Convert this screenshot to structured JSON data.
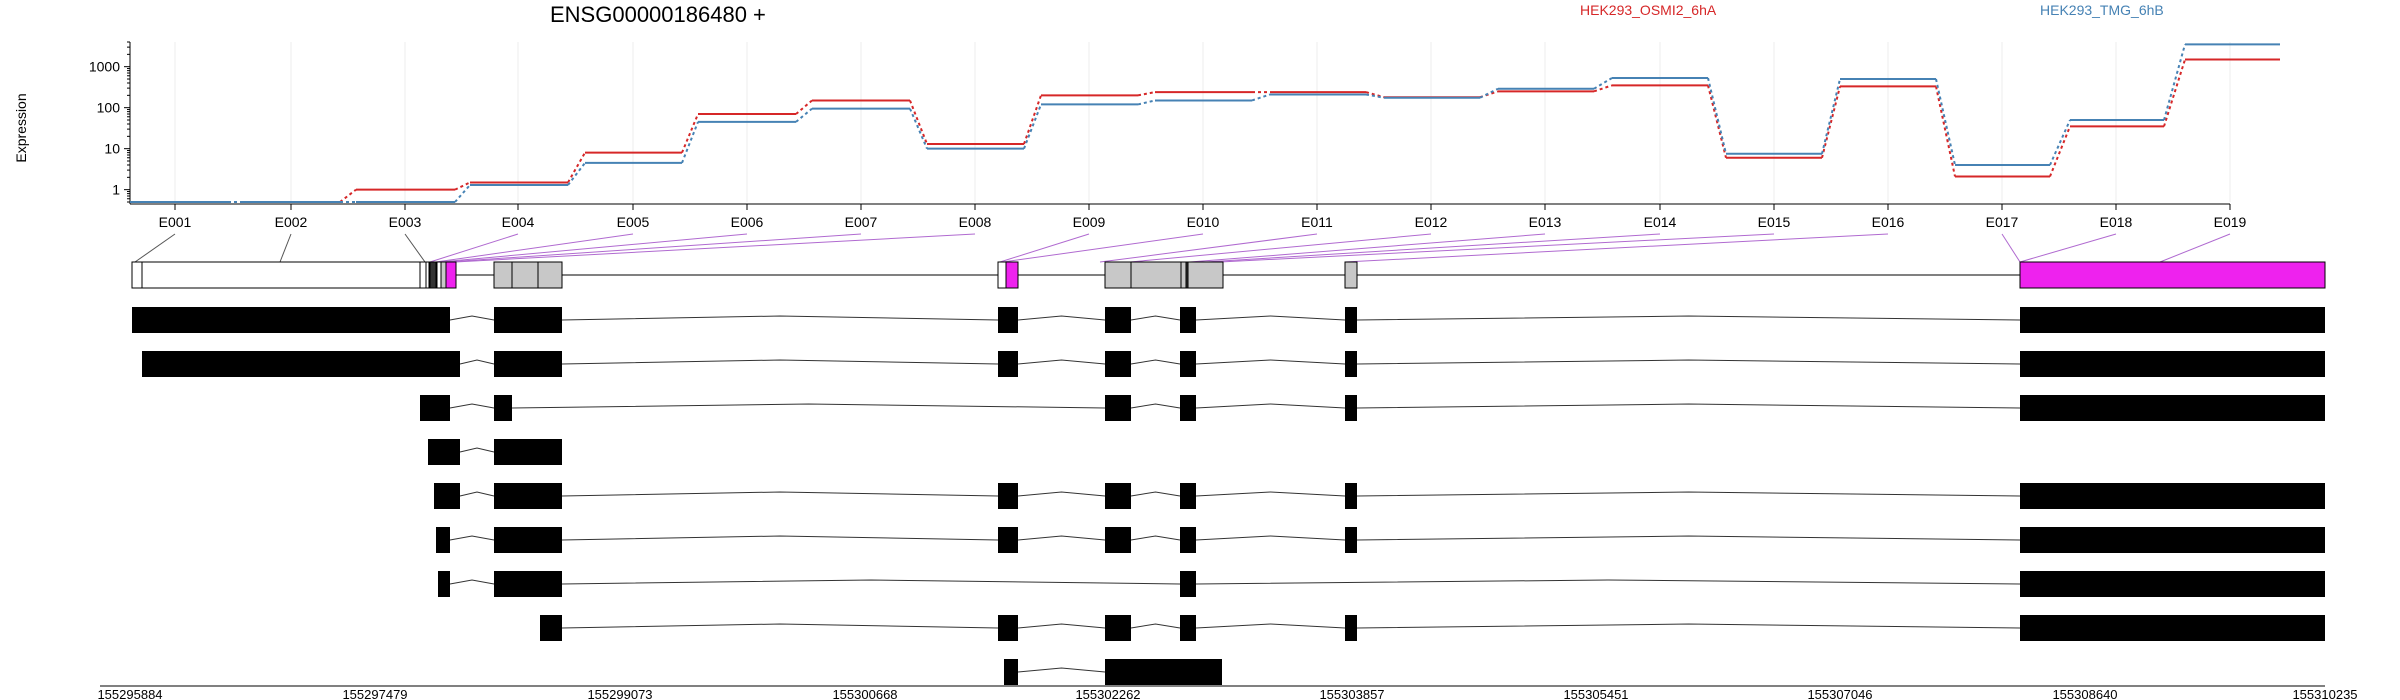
{
  "chart_data": {
    "type": "line",
    "title": "ENSG00000186480 +",
    "ylabel": "Expression",
    "yscale": "log",
    "ylim": [
      0.5,
      4000
    ],
    "y_ticks": [
      1,
      10,
      100,
      1000
    ],
    "y_tick_labels": [
      "1",
      "10",
      "100",
      "1000"
    ],
    "grid": true,
    "legend_position": "top",
    "categories": [
      "E001",
      "E002",
      "E003",
      "E004",
      "E005",
      "E006",
      "E007",
      "E008",
      "E009",
      "E010",
      "E011",
      "E012",
      "E013",
      "E014",
      "E015",
      "E016",
      "E017",
      "E018",
      "E019"
    ],
    "series": [
      {
        "name": "HEK293_OSMI2_6hA",
        "color": "#d62728",
        "values": [
          0.5,
          0.5,
          1.0,
          1.5,
          8,
          70,
          150,
          13,
          200,
          240,
          240,
          180,
          250,
          350,
          6,
          330,
          2.1,
          35,
          1500
        ]
      },
      {
        "name": "HEK293_TMG_6hB",
        "color": "#4682b4",
        "values": [
          0.5,
          0.5,
          0.5,
          1.3,
          4.5,
          45,
          95,
          10,
          120,
          150,
          210,
          175,
          290,
          530,
          7.5,
          500,
          4.0,
          50,
          3500
        ]
      }
    ],
    "genomic_axis_labels": [
      "155295884",
      "155297479",
      "155299073",
      "155300668",
      "155302262",
      "155303857",
      "155305451",
      "155307046",
      "155308640",
      "155310235"
    ],
    "colors": {
      "highlight": "#ee22ee",
      "exon_gray": "#c8c8c8",
      "transcript": "#000000",
      "connector": "#9b59b6"
    }
  }
}
